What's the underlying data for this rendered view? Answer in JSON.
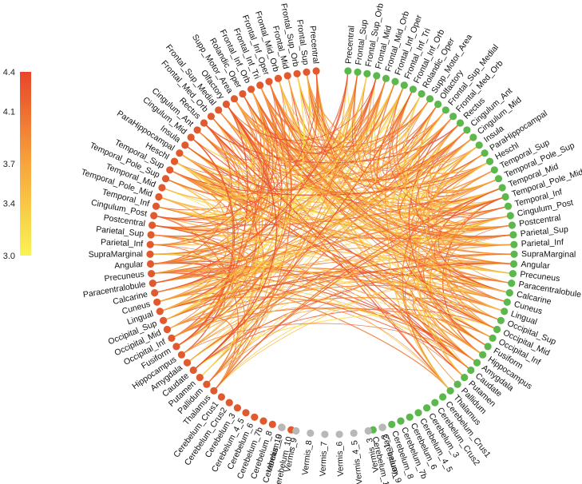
{
  "colorbar": {
    "ticks": [
      "4.4",
      "4.1",
      "3.7",
      "3.4",
      "3.0"
    ],
    "min": 3.0,
    "max": 4.4,
    "color_low": "#f9f353",
    "color_mid": "#f7a53c",
    "color_high": "#e8452a"
  },
  "colors": {
    "left_hemisphere_node": "#e05a2e",
    "right_hemisphere_node": "#5cb84c",
    "vermis_node": "#b8b8b8"
  },
  "left_nodes": [
    "Precentral",
    "Frontal_Sup",
    "Frontal_Sup_Orb",
    "Frontal_Mid",
    "Frontal_Mid_Orb",
    "Frontal_Inf_Oper",
    "Frontal_Inf_Tri",
    "Frontal_Inf_Orb",
    "Rolandic_Oper",
    "Supp_Motor_Area",
    "Olfactory",
    "Frontal_Sup_Medial",
    "Frontal_Med_Orb",
    "Rectus",
    "Cingulum_Ant",
    "Cingulum_Mid",
    "Insula",
    "ParaHippocampal",
    "Heschl",
    "Temporal_Sup",
    "Temporal_Pole_Sup",
    "Temporal_Mid",
    "Temporal_Pole_Mid",
    "Temporal_Inf",
    "Cingulum_Post",
    "Postcentral",
    "Parietal_Sup",
    "Parietal_Inf",
    "SupraMarginal",
    "Angular",
    "Precuneus",
    "Paracentralobule",
    "Calcarine",
    "Cuneus",
    "Lingual",
    "Occipital_Sup",
    "Occipital_Mid",
    "Occipital_Inf",
    "Fusiform",
    "Hippocampus",
    "Amygdala",
    "Caudate",
    "Putamen",
    "Pallidum",
    "Thalamus",
    "Cerebelum_Crus1",
    "Cerebelum_Crus2",
    "Cerebelum_3",
    "Cerebelum_4_5",
    "Cerebelum_6",
    "Cerebelum_7b",
    "Cerebelum_8",
    "Cerebelum_9",
    "Cerebelum_10"
  ],
  "vermis_nodes": [
    "Vermis_10",
    "Vermis_9",
    "Vermis_8",
    "Vermis_7",
    "Vermis_6",
    "Vermis_4_5",
    "Vermis_3",
    "Vermis_1_2"
  ],
  "right_nodes": [
    "Precentral",
    "Frontal_Sup",
    "Frontal_Sup_Orb",
    "Frontal_Mid",
    "Frontal_Mid_Orb",
    "Frontal_Inf_Oper",
    "Frontal_Inf_Tri",
    "Frontal_Inf_Orb",
    "Rolandic_Oper",
    "Supp_Motor_Area",
    "Olfactory",
    "Frontal_Sup_Medial",
    "Frontal_Med_Orb",
    "Rectus",
    "Cingulum_Ant",
    "Cingulum_Mid",
    "Insula",
    "ParaHippocampal",
    "Heschl",
    "Temporal_Sup",
    "Temporal_Pole_Sup",
    "Temporal_Mid",
    "Temporal_Pole_Mid",
    "Temporal_Inf",
    "Cingulum_Post",
    "Postcentral",
    "Parietal_Sup",
    "Parietal_Inf",
    "SupraMarginal",
    "Angular",
    "Precuneus",
    "Paracentralobule",
    "Calcarine",
    "Cuneus",
    "Lingual",
    "Occipital_Sup",
    "Occipital_Mid",
    "Occipital_Inf",
    "Fusiform",
    "Hippocampus",
    "Amygdala",
    "Caudate",
    "Putamen",
    "Pallidum",
    "Thalamus",
    "Cerebelum_Crus1",
    "Cerebelum_Crus2",
    "Cerebelum_3",
    "Cerebelum_4_5",
    "Cerebelum_6",
    "Cerebelum_7b",
    "Cerebelum_8",
    "Cerebelum_9",
    "Cerebelum_10"
  ]
}
